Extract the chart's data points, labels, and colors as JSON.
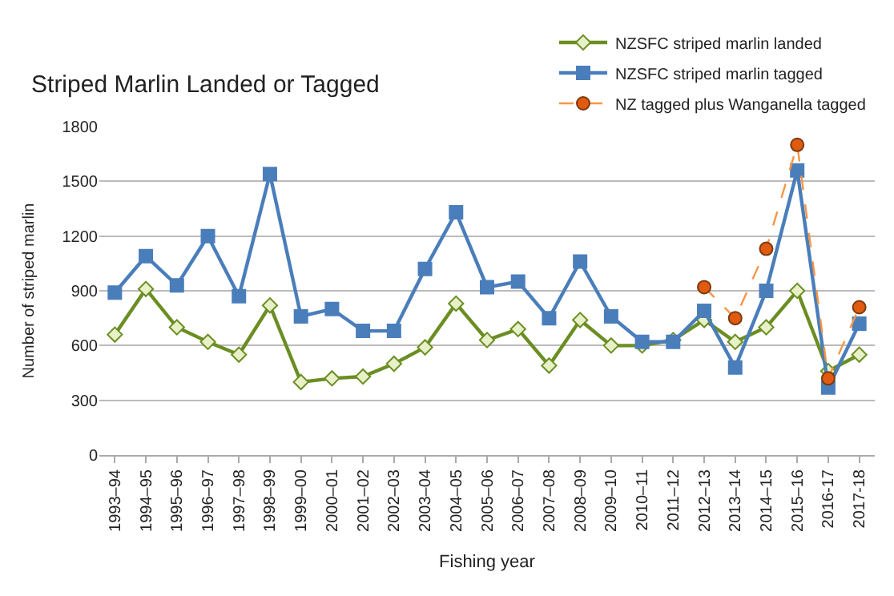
{
  "chart_data": {
    "type": "line",
    "title": "Striped Marlin Landed or Tagged",
    "xlabel": "Fishing year",
    "ylabel": "Number of striped marlin",
    "categories": [
      "1993–94",
      "1994–95",
      "1995–96",
      "1996–97",
      "1997–98",
      "1998–99",
      "1999–00",
      "2000–01",
      "2001–02",
      "2002–03",
      "2003–04",
      "2004–05",
      "2005–06",
      "2006–07",
      "2007–08",
      "2008–09",
      "2009–10",
      "2010–11",
      "2011–12",
      "2012–13",
      "2013–14",
      "2014–15",
      "2015–16",
      "2016-17",
      "2017-18"
    ],
    "series": [
      {
        "name": "NZSFC striped marlin landed",
        "color": "#6b8e23",
        "marker": "diamond",
        "line_style": "solid",
        "values": [
          660,
          910,
          700,
          620,
          550,
          820,
          400,
          420,
          430,
          500,
          590,
          830,
          630,
          690,
          490,
          740,
          600,
          600,
          630,
          740,
          620,
          700,
          900,
          460,
          550
        ]
      },
      {
        "name": "NZSFC striped marlin tagged",
        "color": "#4a7ebb",
        "marker": "square",
        "line_style": "solid",
        "values": [
          890,
          1090,
          930,
          1200,
          870,
          1540,
          760,
          800,
          680,
          680,
          1020,
          1330,
          920,
          950,
          750,
          1060,
          760,
          620,
          620,
          790,
          480,
          900,
          1560,
          370,
          720
        ]
      },
      {
        "name": "NZ tagged plus Wanganella tagged",
        "color": "#f79646",
        "marker": "circle",
        "line_style": "dashed",
        "values": [
          null,
          null,
          null,
          null,
          null,
          null,
          null,
          null,
          null,
          null,
          null,
          null,
          null,
          null,
          null,
          null,
          null,
          null,
          null,
          920,
          750,
          1130,
          1700,
          420,
          810
        ]
      }
    ],
    "ylim": [
      0,
      1800
    ],
    "yticks": [
      0,
      300,
      600,
      900,
      1200,
      1500,
      1800
    ],
    "grid": "y",
    "legend": "top right"
  }
}
